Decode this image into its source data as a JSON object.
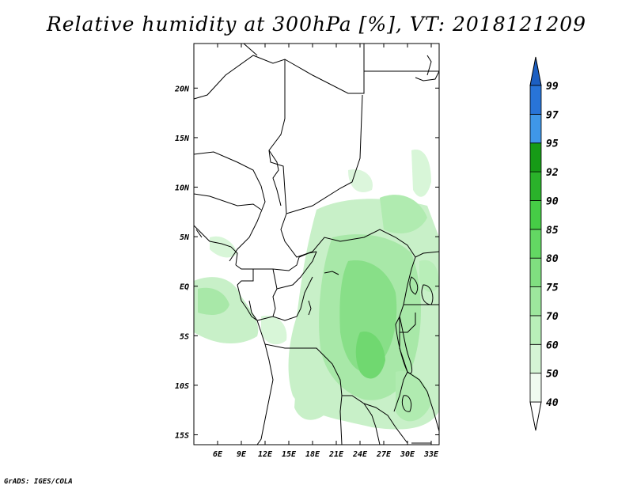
{
  "title": "Relative humidity at 300hPa [%], VT: 2018121209",
  "credit": "GrADS: IGES/COLA",
  "map": {
    "lon_range": [
      3,
      34
    ],
    "lat_range": [
      -16,
      24.5
    ],
    "lon_ticks": [
      {
        "value": 6,
        "label": "6E"
      },
      {
        "value": 9,
        "label": "9E"
      },
      {
        "value": 12,
        "label": "12E"
      },
      {
        "value": 15,
        "label": "15E"
      },
      {
        "value": 18,
        "label": "18E"
      },
      {
        "value": 21,
        "label": "21E"
      },
      {
        "value": 24,
        "label": "24E"
      },
      {
        "value": 27,
        "label": "27E"
      },
      {
        "value": 30,
        "label": "30E"
      },
      {
        "value": 33,
        "label": "33E"
      }
    ],
    "lat_ticks": [
      {
        "value": 20,
        "label": "20N"
      },
      {
        "value": 15,
        "label": "15N"
      },
      {
        "value": 10,
        "label": "10N"
      },
      {
        "value": 5,
        "label": "5N"
      },
      {
        "value": 0,
        "label": "EQ"
      },
      {
        "value": -5,
        "label": "5S"
      },
      {
        "value": -10,
        "label": "10S"
      },
      {
        "value": -15,
        "label": "15S"
      }
    ]
  },
  "colorbar": {
    "levels": [
      {
        "label": "40",
        "color": "#f0fbf0"
      },
      {
        "label": "50",
        "color": "#d5f5d5"
      },
      {
        "label": "60",
        "color": "#b9efb9"
      },
      {
        "label": "70",
        "color": "#9de79d"
      },
      {
        "label": "75",
        "color": "#80df80"
      },
      {
        "label": "80",
        "color": "#63d863"
      },
      {
        "label": "85",
        "color": "#46cc46"
      },
      {
        "label": "90",
        "color": "#2ab22a"
      },
      {
        "label": "92",
        "color": "#169b16"
      },
      {
        "label": "95",
        "color": "#3f97e8"
      },
      {
        "label": "97",
        "color": "#2874d8"
      }
    ],
    "top_label": "99",
    "under_color": "#ffffff",
    "over_color": "#1c5fc2"
  }
}
